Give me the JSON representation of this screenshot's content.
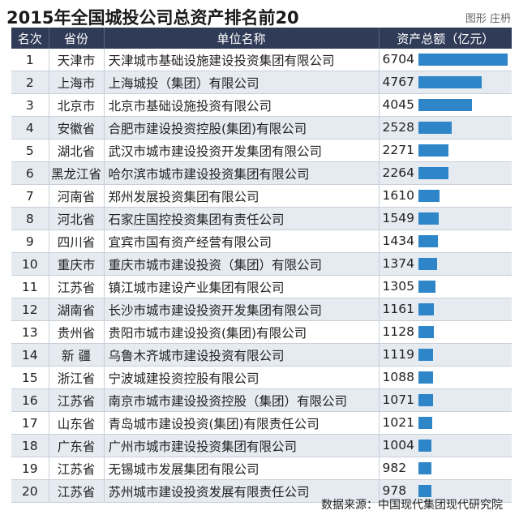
{
  "title": "2015年全国城投公司总资产排名前20",
  "credit": "图形  庄枬",
  "source": "数据来源：中国现代集团现代研究院",
  "colors": {
    "header_bg": "#2f3b57",
    "bar": "#2e86c8",
    "stripe": "#e6ebf2"
  },
  "chart_data": {
    "type": "table",
    "title": "2015年全国城投公司总资产排名前20",
    "columns": [
      "名次",
      "省份",
      "单位名称",
      "资产总额（亿元）"
    ],
    "value_max": 6704,
    "rows": [
      {
        "rank": "1",
        "province": "天津市",
        "name": "天津城市基础设施建设投资集团有限公司",
        "value": 6704
      },
      {
        "rank": "2",
        "province": "上海市",
        "name": "上海城投（集团）有限公司",
        "value": 4767
      },
      {
        "rank": "3",
        "province": "北京市",
        "name": "北京市基础设施投资有限公司",
        "value": 4045
      },
      {
        "rank": "4",
        "province": "安徽省",
        "name": "合肥市建设投资控股(集团)有限公司",
        "value": 2528
      },
      {
        "rank": "5",
        "province": "湖北省",
        "name": "武汉市城市建设投资开发集团有限公司",
        "value": 2271
      },
      {
        "rank": "6",
        "province": "黑龙江省",
        "name": "哈尔滨市城市建设投资集团有限公司",
        "value": 2264
      },
      {
        "rank": "7",
        "province": "河南省",
        "name": "郑州发展投资集团有限公司",
        "value": 1610
      },
      {
        "rank": "8",
        "province": "河北省",
        "name": "石家庄国控投资集团有责任公司",
        "value": 1549
      },
      {
        "rank": "9",
        "province": "四川省",
        "name": "宜宾市国有资产经营有限公司",
        "value": 1434
      },
      {
        "rank": "10",
        "province": "重庆市",
        "name": "重庆市城市建设投资（集团）有限公司",
        "value": 1374
      },
      {
        "rank": "11",
        "province": "江苏省",
        "name": "镇江城市建设产业集团有限公司",
        "value": 1305
      },
      {
        "rank": "12",
        "province": "湖南省",
        "name": "长沙市城市建设投资开发集团有限公司",
        "value": 1161
      },
      {
        "rank": "13",
        "province": "贵州省",
        "name": "贵阳市城市建设投资(集团)有限公司",
        "value": 1128
      },
      {
        "rank": "14",
        "province": "新  疆",
        "name": "乌鲁木齐城市建设投资有限公司",
        "value": 1119
      },
      {
        "rank": "15",
        "province": "浙江省",
        "name": "宁波城建投资控股有限公司",
        "value": 1088
      },
      {
        "rank": "16",
        "province": "江苏省",
        "name": "南京市城市建设投资控股（集团）有限公司",
        "value": 1071
      },
      {
        "rank": "17",
        "province": "山东省",
        "name": "青岛城市建设投资(集团)有限责任公司",
        "value": 1021
      },
      {
        "rank": "18",
        "province": "广东省",
        "name": "广州市城市建设投资集团有限公司",
        "value": 1004
      },
      {
        "rank": "19",
        "province": "江苏省",
        "name": "无锡城市发展集团有限公司",
        "value": 982
      },
      {
        "rank": "20",
        "province": "江苏省",
        "name": "苏州城市建设投资发展有限责任公司",
        "value": 978
      }
    ]
  }
}
